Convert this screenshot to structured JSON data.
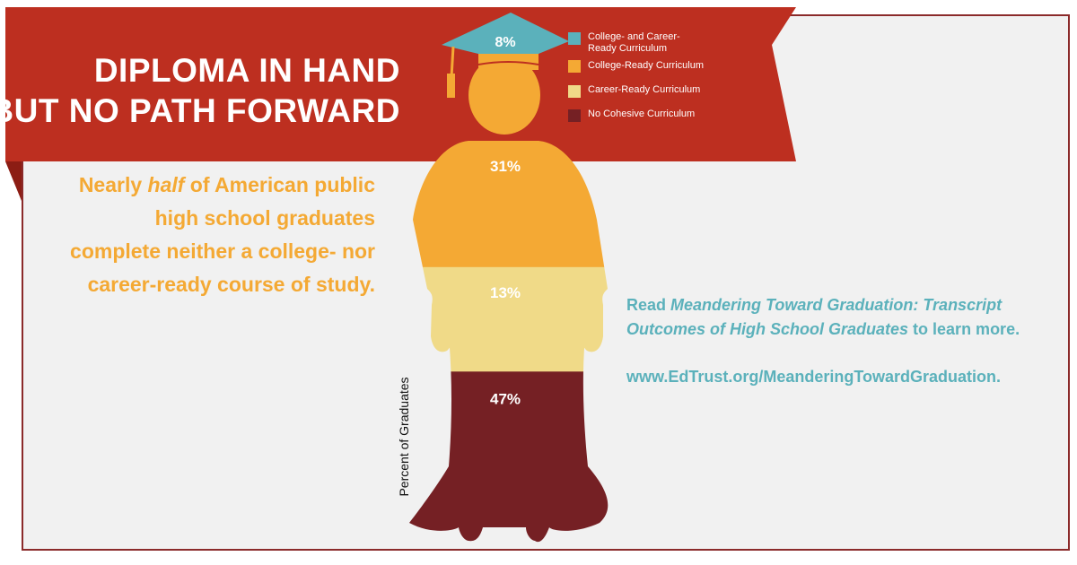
{
  "banner": {
    "line1": "DIPLOMA IN HAND",
    "line2": "BUT NO PATH FORWARD"
  },
  "lede": {
    "part1": "Nearly ",
    "em": "half",
    "part2": " of American public",
    "line2": "high school graduates",
    "line3": "complete neither a college- nor",
    "line4": "career-ready course of study."
  },
  "readmore": {
    "read": "Read ",
    "title1": "Meandering Toward Graduation: Transcript",
    "title2": "Outcomes of High School Graduates",
    "tail": " to learn more."
  },
  "url": {
    "main": "www.EdTrust.org/MeanderingTowardGraduation",
    "period": "."
  },
  "colors": {
    "banner": "#bd2f20",
    "banner_shadow": "#8c1d14",
    "panel_bg": "#f1f1f1",
    "teal": "#5bb1bb",
    "orange": "#f4a934",
    "yellow": "#f0da88",
    "maroon": "#752024"
  },
  "chart_data": {
    "type": "pictograph-stacked",
    "ylabel": "Percent of Graduates",
    "unit": "%",
    "series": [
      {
        "name": "College- and Career-Ready Curriculum",
        "value": 8,
        "label": "8%",
        "color": "#5bb1bb"
      },
      {
        "name": "College-Ready Curriculum",
        "value": 31,
        "label": "31%",
        "color": "#f4a934"
      },
      {
        "name": "Career-Ready Curriculum",
        "value": 13,
        "label": "13%",
        "color": "#f0da88"
      },
      {
        "name": "No Cohesive Curriculum",
        "value": 47,
        "label": "47%",
        "color": "#752024"
      }
    ]
  }
}
